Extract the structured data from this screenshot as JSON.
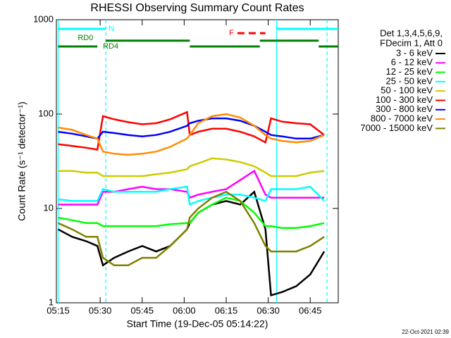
{
  "chart_data": {
    "type": "line",
    "title": "RHESSI Observing Summary Count Rates",
    "xlabel": "Start Time (19-Dec-05 05:14:22)",
    "ylabel": "Count Rate (s⁻¹ detector⁻¹)",
    "footer": "22-Oct-2021 02:39",
    "legend_title": [
      "Det 1,3,4,5,6,9,",
      "FDecim 1, Att 0"
    ],
    "log_y": true,
    "xlim": [
      "05:14:22",
      "06:55"
    ],
    "xticks": [
      "05:15",
      "05:30",
      "05:45",
      "06:00",
      "06:15",
      "06:30",
      "06:45"
    ],
    "ylim": [
      1,
      1000
    ],
    "yticks": [
      1,
      10,
      100,
      1000
    ],
    "x": [
      "05:15",
      "05:20",
      "05:25",
      "05:29",
      "05:31",
      "05:35",
      "05:40",
      "05:45",
      "05:50",
      "05:55",
      "06:01",
      "06:02",
      "06:05",
      "06:10",
      "06:15",
      "06:20",
      "06:25",
      "06:29",
      "06:31",
      "06:35",
      "06:40",
      "06:45",
      "06:50"
    ],
    "series": [
      {
        "name": "3 - 6 keV",
        "color": "#000000",
        "values": [
          6,
          5,
          4.5,
          4,
          2.5,
          3,
          3.5,
          4,
          3.5,
          4,
          6,
          7,
          9,
          11,
          12,
          11,
          15,
          6,
          1.2,
          1.3,
          1.5,
          2,
          3.5
        ]
      },
      {
        "name": "6 - 12 keV",
        "color": "#ff00ff",
        "values": [
          11,
          11,
          11,
          11,
          15,
          15,
          16,
          17,
          16,
          16,
          15,
          13,
          14,
          15,
          16,
          20,
          25,
          14,
          13,
          13,
          13,
          13,
          13
        ]
      },
      {
        "name": "12 - 25 keV",
        "color": "#00ff00",
        "values": [
          8,
          7.5,
          7,
          7,
          6.5,
          6.5,
          6.5,
          6.5,
          6.5,
          6.8,
          7,
          7,
          9,
          11,
          13,
          12,
          9,
          6.5,
          6.5,
          6.2,
          6.2,
          6.5,
          7
        ]
      },
      {
        "name": "25 - 50 keV",
        "color": "#00ffff",
        "values": [
          12.5,
          12,
          12,
          12,
          16,
          15,
          15,
          15,
          15,
          16,
          17,
          11,
          12,
          13,
          14,
          14,
          13,
          12,
          16,
          16,
          16,
          17,
          12
        ]
      },
      {
        "name": "50 - 100 keV",
        "color": "#cccc00",
        "values": [
          25,
          25,
          24,
          24,
          22,
          22,
          22,
          22,
          23,
          24,
          26,
          28,
          30,
          34,
          33,
          31,
          28,
          24,
          22,
          22,
          22,
          24,
          25
        ]
      },
      {
        "name": "100 - 300 keV",
        "color": "#ff0000",
        "values": [
          48,
          46,
          44,
          42,
          95,
          88,
          82,
          78,
          80,
          88,
          105,
          60,
          65,
          70,
          70,
          65,
          58,
          50,
          90,
          83,
          80,
          78,
          60
        ]
      },
      {
        "name": "300 - 800 keV",
        "color": "#0000ff",
        "values": [
          65,
          62,
          58,
          55,
          65,
          63,
          60,
          58,
          60,
          65,
          75,
          80,
          85,
          90,
          90,
          85,
          75,
          65,
          60,
          58,
          55,
          55,
          60
        ]
      },
      {
        "name": "800 - 7000 keV",
        "color": "#ff8c00",
        "values": [
          72,
          68,
          60,
          55,
          40,
          38,
          37,
          38,
          40,
          45,
          55,
          60,
          80,
          95,
          100,
          92,
          75,
          60,
          55,
          52,
          50,
          52,
          60
        ]
      },
      {
        "name": "7000 - 15000 keV",
        "color": "#808000",
        "values": [
          7,
          6,
          5,
          5,
          3,
          2.5,
          2.5,
          3,
          3,
          4,
          6,
          8,
          10,
          13,
          15,
          12,
          7,
          4,
          3.5,
          3.5,
          3.5,
          4,
          5
        ]
      }
    ],
    "vlines": [
      {
        "x": "05:15",
        "color": "#00ffff",
        "dashed": false
      },
      {
        "x": "05:32",
        "color": "#00ffff",
        "dashed": true
      },
      {
        "x": "06:33",
        "color": "#00ffff",
        "dashed": false
      },
      {
        "x": "06:51",
        "color": "#00ffff",
        "dashed": true
      }
    ],
    "state_bars": [
      {
        "x": [
          "05:15",
          "05:32"
        ],
        "y": 800,
        "color": "#00ffff",
        "dashed": false
      },
      {
        "x": [
          "06:33",
          "06:55"
        ],
        "y": 800,
        "color": "#00ffff",
        "dashed": false
      },
      {
        "x": [
          "06:19",
          "06:29"
        ],
        "y": 720,
        "color": "#ff0000",
        "dashed": true
      },
      {
        "x": [
          "05:32",
          "06:02"
        ],
        "y": 600,
        "color": "#008000",
        "dashed": false
      },
      {
        "x": [
          "06:27",
          "06:48"
        ],
        "y": 600,
        "color": "#008000",
        "dashed": false
      },
      {
        "x": [
          "05:15",
          "05:29"
        ],
        "y": 520,
        "color": "#008000",
        "dashed": false
      },
      {
        "x": [
          "06:02",
          "06:27"
        ],
        "y": 520,
        "color": "#008000",
        "dashed": false
      },
      {
        "x": [
          "06:48",
          "06:55"
        ],
        "y": 520,
        "color": "#008000",
        "dashed": false
      }
    ],
    "annotations": [
      {
        "text": "N",
        "x": "05:33",
        "y": 800,
        "color": "#00ffff"
      },
      {
        "text": "F",
        "x": "06:16",
        "y": 720,
        "color": "#ff0000"
      },
      {
        "text": "RD0",
        "x": "05:22",
        "y": 640,
        "color": "#008000"
      },
      {
        "text": "RD4",
        "x": "05:31",
        "y": 520,
        "color": "#008000"
      }
    ]
  }
}
